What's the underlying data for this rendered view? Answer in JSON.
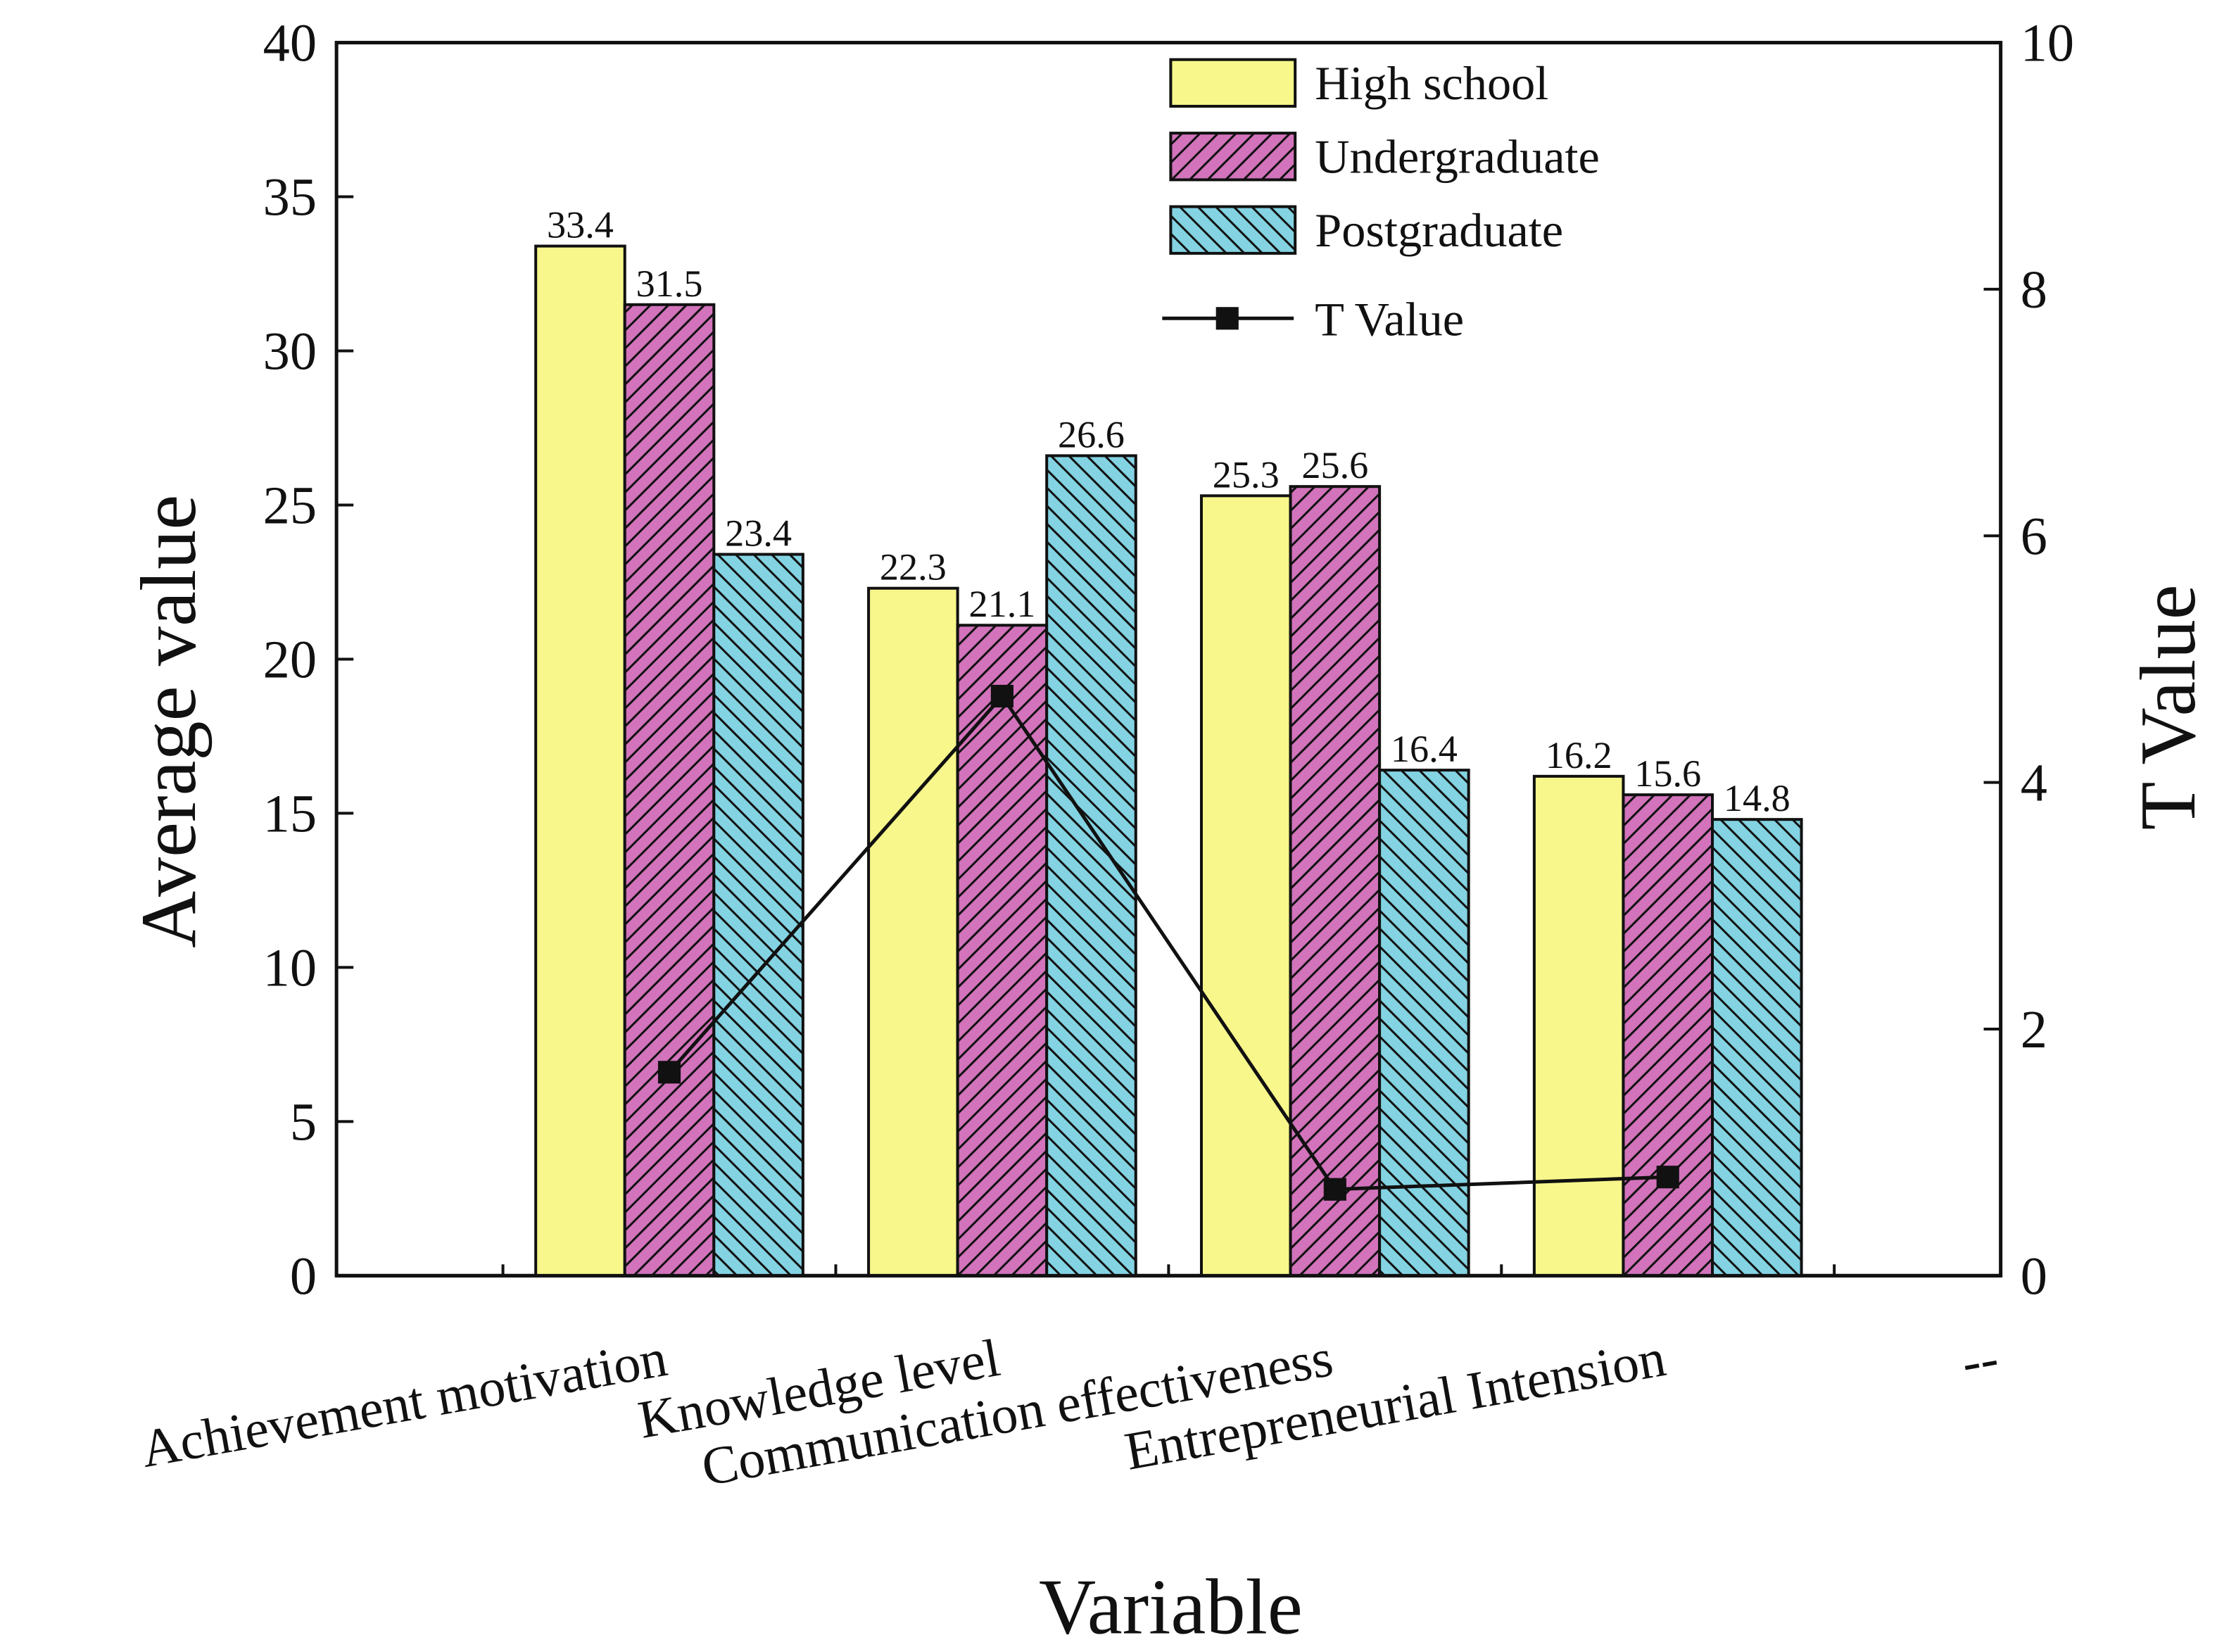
{
  "chart_data": {
    "type": "bar",
    "x_label": "Variable",
    "y_label": "Average value",
    "y2_label": "T Value",
    "categories": [
      "Achievement motivation",
      "Knowledge level",
      "Communication effectiveness",
      "Entrepreneurial Intension",
      "--"
    ],
    "series": [
      {
        "name": "High school",
        "color": "#f7f78c",
        "hatch": "none",
        "values": [
          33.4,
          22.3,
          25.3,
          16.2,
          null
        ]
      },
      {
        "name": "Undergraduate",
        "color": "#d273bb",
        "hatch": "/",
        "values": [
          31.5,
          21.1,
          25.6,
          15.6,
          null
        ]
      },
      {
        "name": "Postgraduate",
        "color": "#84d3e3",
        "hatch": "\\",
        "values": [
          23.4,
          26.6,
          16.4,
          14.8,
          null
        ]
      },
      {
        "name": "T Value",
        "type": "line",
        "axis": "y2",
        "color": "#111111",
        "values": [
          1.65,
          4.7,
          0.7,
          0.8,
          null
        ]
      }
    ],
    "ylim": [
      0,
      40
    ],
    "yticks": [
      0,
      5,
      10,
      15,
      20,
      25,
      30,
      35,
      40
    ],
    "y2lim": [
      0,
      10
    ],
    "y2ticks": [
      0,
      2,
      4,
      6,
      8,
      10
    ],
    "legend": "upper right"
  }
}
